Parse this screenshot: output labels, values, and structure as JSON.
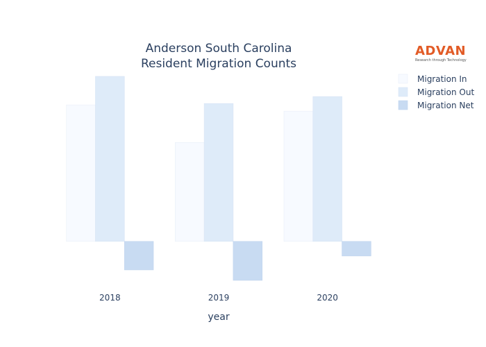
{
  "chart_data": {
    "type": "bar",
    "title_lines": [
      "Anderson South Carolina",
      "Resident Migration Counts"
    ],
    "xlabel": "year",
    "ylabel": "",
    "categories": [
      "2018",
      "2019",
      "2020"
    ],
    "series": [
      {
        "name": "Migration In",
        "color": "#f7faff",
        "stroke": "#e9eff8",
        "values": [
          9800,
          7100,
          9350
        ]
      },
      {
        "name": "Migration Out",
        "color": "#deebf9",
        "stroke": "#d7e4f5",
        "values": [
          11850,
          9900,
          10400
        ]
      },
      {
        "name": "Migration Net",
        "color": "#c8dbf2",
        "stroke": "#c0d4ee",
        "values": [
          -2050,
          -2800,
          -1050
        ]
      }
    ],
    "ylim": [
      -3100,
      12100
    ],
    "grid": false,
    "legend_position": "right"
  },
  "logo": {
    "brand": "ADVAN",
    "tagline": "Research through Technology"
  }
}
